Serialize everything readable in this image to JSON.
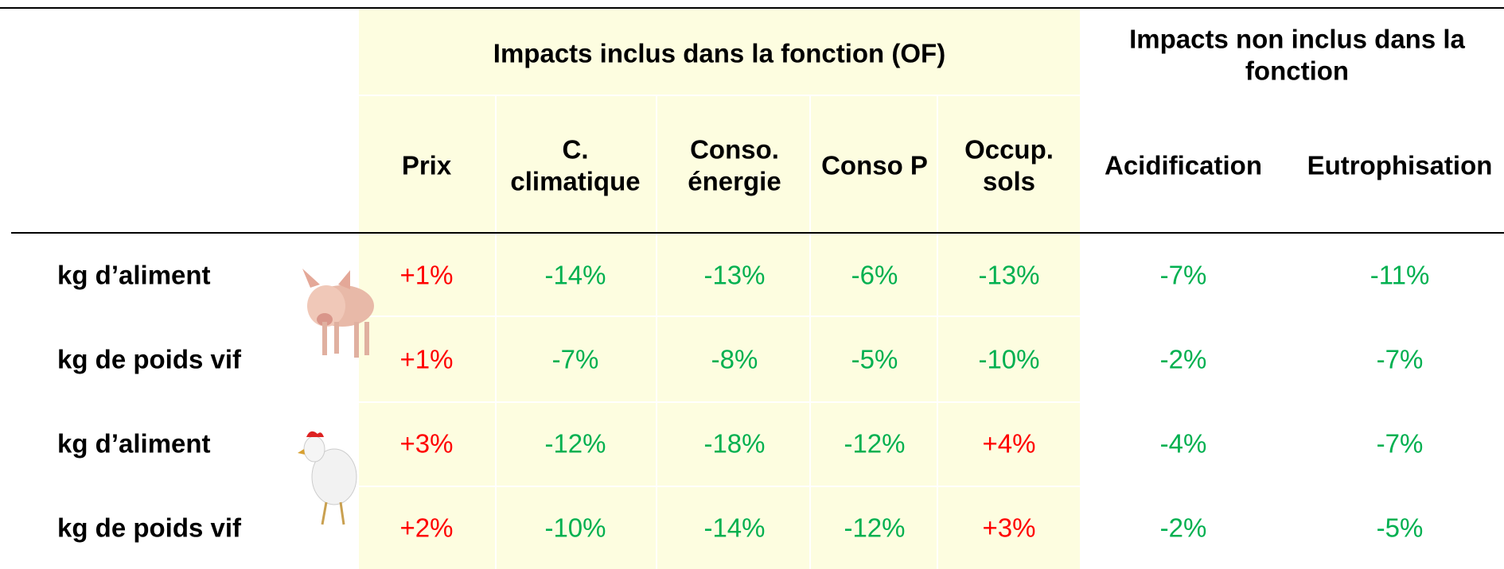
{
  "table": {
    "group_headers": [
      {
        "lines": [
          "Impacts inclus dans la fonction (OF)"
        ]
      },
      {
        "lines": [
          "Impacts non inclus dans la",
          "fonction"
        ]
      }
    ],
    "columns": [
      [
        "Prix"
      ],
      [
        "C.",
        "climatique"
      ],
      [
        "Conso.",
        "énergie"
      ],
      [
        "Conso P"
      ],
      [
        "Occup.",
        "sols"
      ],
      [
        "Acidification"
      ],
      [
        "Eutrophisation"
      ]
    ],
    "rows": [
      {
        "label": "kg d’aliment",
        "values": [
          "+1%",
          "-14%",
          "-13%",
          "-6%",
          "-13%",
          "-7%",
          "-11%"
        ]
      },
      {
        "label": "kg de poids vif",
        "values": [
          "+1%",
          "-7%",
          "-8%",
          "-5%",
          "-10%",
          "-2%",
          "-7%"
        ]
      },
      {
        "label": "kg d’aliment",
        "values": [
          "+3%",
          "-12%",
          "-18%",
          "-12%",
          "+4%",
          "-4%",
          "-7%"
        ]
      },
      {
        "label": "kg de poids vif",
        "values": [
          "+2%",
          "-10%",
          "-14%",
          "-12%",
          "+3%",
          "-2%",
          "-5%"
        ]
      }
    ]
  }
}
